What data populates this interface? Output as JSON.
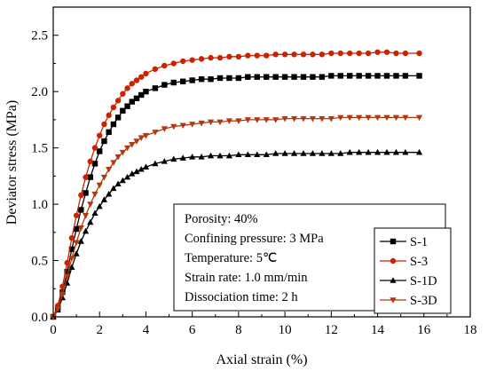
{
  "chart_data": {
    "type": "line",
    "xlabel": "Axial strain (%)",
    "ylabel": "Deviator stress (MPa)",
    "xlim": [
      0,
      18
    ],
    "ylim": [
      0,
      2.75
    ],
    "x_ticks": [
      "0",
      "2",
      "4",
      "6",
      "8",
      "10",
      "12",
      "14",
      "16",
      "18"
    ],
    "y_ticks": [
      "0.0",
      "0.5",
      "1.0",
      "1.5",
      "2.0",
      "2.5"
    ],
    "grid": false,
    "legend_position": "bottom-right",
    "series": [
      {
        "name": "S-1",
        "marker": "square",
        "color": "#000000",
        "x": [
          0,
          0.2,
          0.4,
          0.6,
          0.8,
          1.0,
          1.2,
          1.4,
          1.6,
          1.8,
          2.0,
          2.2,
          2.4,
          2.6,
          2.8,
          3.0,
          3.2,
          3.4,
          3.6,
          3.8,
          4.0,
          4.4,
          4.8,
          5.2,
          5.6,
          6.0,
          6.4,
          6.8,
          7.2,
          7.6,
          8.0,
          8.4,
          8.8,
          9.2,
          9.6,
          10.0,
          10.4,
          10.8,
          11.2,
          11.6,
          12.0,
          12.4,
          12.8,
          13.2,
          13.6,
          14.0,
          14.4,
          14.8,
          15.2,
          15.8
        ],
        "y": [
          0,
          0.08,
          0.22,
          0.4,
          0.6,
          0.78,
          0.95,
          1.1,
          1.24,
          1.36,
          1.47,
          1.56,
          1.64,
          1.71,
          1.77,
          1.83,
          1.87,
          1.91,
          1.94,
          1.97,
          2.0,
          2.03,
          2.06,
          2.08,
          2.09,
          2.1,
          2.11,
          2.11,
          2.12,
          2.12,
          2.12,
          2.13,
          2.13,
          2.13,
          2.13,
          2.13,
          2.13,
          2.13,
          2.13,
          2.13,
          2.14,
          2.14,
          2.14,
          2.14,
          2.14,
          2.14,
          2.14,
          2.14,
          2.14,
          2.14
        ]
      },
      {
        "name": "S-3",
        "marker": "circle",
        "color": "#cc2200",
        "x": [
          0,
          0.2,
          0.4,
          0.6,
          0.8,
          1.0,
          1.2,
          1.4,
          1.6,
          1.8,
          2.0,
          2.2,
          2.4,
          2.6,
          2.8,
          3.0,
          3.2,
          3.4,
          3.6,
          3.8,
          4.0,
          4.4,
          4.8,
          5.2,
          5.6,
          6.0,
          6.4,
          6.8,
          7.2,
          7.6,
          8.0,
          8.4,
          8.8,
          9.2,
          9.6,
          10.0,
          10.4,
          10.8,
          11.2,
          11.6,
          12.0,
          12.4,
          12.8,
          13.2,
          13.6,
          14.0,
          14.4,
          14.8,
          15.2,
          15.8
        ],
        "y": [
          0,
          0.1,
          0.27,
          0.48,
          0.7,
          0.9,
          1.08,
          1.24,
          1.38,
          1.5,
          1.61,
          1.71,
          1.79,
          1.86,
          1.92,
          1.98,
          2.03,
          2.07,
          2.1,
          2.13,
          2.16,
          2.2,
          2.23,
          2.25,
          2.27,
          2.28,
          2.29,
          2.3,
          2.3,
          2.31,
          2.31,
          2.32,
          2.32,
          2.32,
          2.33,
          2.33,
          2.33,
          2.33,
          2.33,
          2.33,
          2.34,
          2.34,
          2.34,
          2.34,
          2.34,
          2.35,
          2.35,
          2.34,
          2.34,
          2.34
        ]
      },
      {
        "name": "S-1D",
        "marker": "triangle-up",
        "color": "#000000",
        "x": [
          0,
          0.2,
          0.4,
          0.6,
          0.8,
          1.0,
          1.2,
          1.4,
          1.6,
          1.8,
          2.0,
          2.2,
          2.4,
          2.6,
          2.8,
          3.0,
          3.2,
          3.4,
          3.6,
          3.8,
          4.0,
          4.4,
          4.8,
          5.2,
          5.6,
          6.0,
          6.4,
          6.8,
          7.2,
          7.6,
          8.0,
          8.4,
          8.8,
          9.2,
          9.6,
          10.0,
          10.4,
          10.8,
          11.2,
          11.6,
          12.0,
          12.4,
          12.8,
          13.2,
          13.6,
          14.0,
          14.4,
          14.8,
          15.2,
          15.8
        ],
        "y": [
          0,
          0.06,
          0.17,
          0.3,
          0.44,
          0.56,
          0.67,
          0.76,
          0.84,
          0.92,
          0.98,
          1.04,
          1.09,
          1.14,
          1.18,
          1.21,
          1.24,
          1.27,
          1.29,
          1.31,
          1.33,
          1.36,
          1.38,
          1.4,
          1.41,
          1.42,
          1.42,
          1.43,
          1.43,
          1.43,
          1.44,
          1.44,
          1.44,
          1.44,
          1.45,
          1.45,
          1.45,
          1.45,
          1.45,
          1.45,
          1.45,
          1.45,
          1.46,
          1.46,
          1.46,
          1.46,
          1.46,
          1.46,
          1.46,
          1.46
        ]
      },
      {
        "name": "S-3D",
        "marker": "triangle-down",
        "color": "#b03a10",
        "x": [
          0,
          0.2,
          0.4,
          0.6,
          0.8,
          1.0,
          1.2,
          1.4,
          1.6,
          1.8,
          2.0,
          2.2,
          2.4,
          2.6,
          2.8,
          3.0,
          3.2,
          3.4,
          3.6,
          3.8,
          4.0,
          4.4,
          4.8,
          5.2,
          5.6,
          6.0,
          6.4,
          6.8,
          7.2,
          7.6,
          8.0,
          8.4,
          8.8,
          9.2,
          9.6,
          10.0,
          10.4,
          10.8,
          11.2,
          11.6,
          12.0,
          12.4,
          12.8,
          13.2,
          13.6,
          14.0,
          14.4,
          14.8,
          15.2,
          15.8
        ],
        "y": [
          0,
          0.07,
          0.2,
          0.36,
          0.52,
          0.66,
          0.79,
          0.9,
          1.0,
          1.09,
          1.17,
          1.24,
          1.31,
          1.37,
          1.42,
          1.46,
          1.5,
          1.53,
          1.56,
          1.59,
          1.61,
          1.64,
          1.67,
          1.69,
          1.7,
          1.71,
          1.72,
          1.73,
          1.73,
          1.74,
          1.74,
          1.75,
          1.75,
          1.75,
          1.75,
          1.76,
          1.76,
          1.76,
          1.76,
          1.76,
          1.76,
          1.77,
          1.77,
          1.77,
          1.77,
          1.77,
          1.77,
          1.77,
          1.77,
          1.77
        ]
      }
    ],
    "annotations": [
      "Porosity: 40%",
      "Confining pressure: 3 MPa",
      "Temperature: 5℃",
      "Strain rate: 1.0 mm/min",
      "Dissociation time: 2 h"
    ]
  }
}
